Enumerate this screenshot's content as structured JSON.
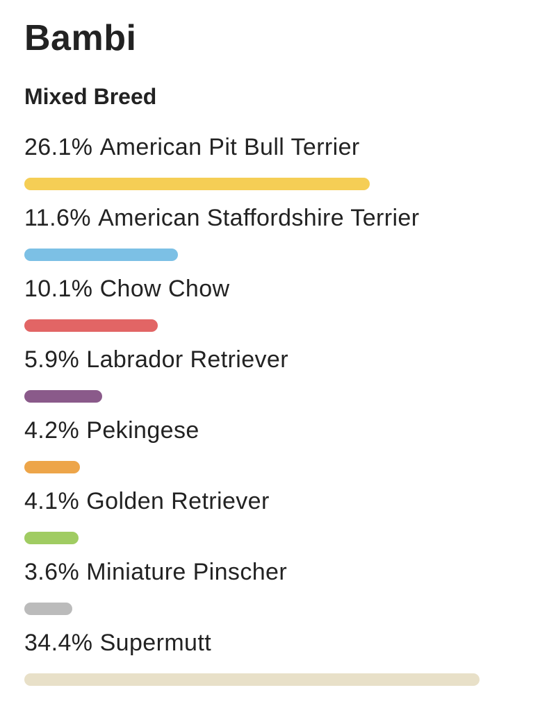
{
  "profile": {
    "name": "Bambi",
    "breed_type": "Mixed Breed"
  },
  "breeds": [
    {
      "percent": "26.1%",
      "value": 26.1,
      "name": "American Pit Bull Terrier",
      "color": "#F5CE55"
    },
    {
      "percent": "11.6%",
      "value": 11.6,
      "name": "American Staffordshire Terrier",
      "color": "#7CC0E5"
    },
    {
      "percent": "10.1%",
      "value": 10.1,
      "name": "Chow Chow",
      "color": "#E26565"
    },
    {
      "percent": "5.9%",
      "value": 5.9,
      "name": "Labrador Retriever",
      "color": "#8A5A8A"
    },
    {
      "percent": "4.2%",
      "value": 4.2,
      "name": "Pekingese",
      "color": "#EDA549"
    },
    {
      "percent": "4.1%",
      "value": 4.1,
      "name": "Golden Retriever",
      "color": "#A0CC62"
    },
    {
      "percent": "3.6%",
      "value": 3.6,
      "name": "Miniature Pinscher",
      "color": "#BBBBBB"
    },
    {
      "percent": "34.4%",
      "value": 34.4,
      "name": "Supermutt",
      "color": "#E8E0C8"
    }
  ]
}
